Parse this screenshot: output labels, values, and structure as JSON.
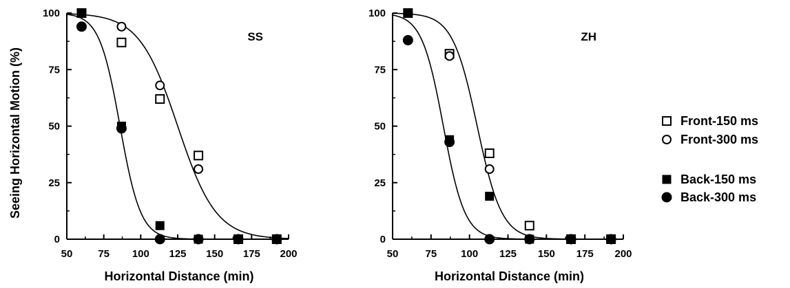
{
  "chart_data": [
    {
      "type": "scatter",
      "panel_label": "SS",
      "xlabel": "Horizontal Distance (min)",
      "ylabel": "Seeing Horizontal Motion (%)",
      "xlim": [
        50,
        200
      ],
      "ylim": [
        0,
        100
      ],
      "xticks": [
        50,
        75,
        100,
        125,
        150,
        175,
        200
      ],
      "yticks": [
        0,
        25,
        50,
        75,
        100
      ],
      "x": [
        60,
        87,
        113,
        139,
        166,
        192
      ],
      "series": [
        {
          "name": "Front-150 ms",
          "marker": "open-square",
          "values": [
            100,
            87,
            62,
            37,
            0,
            0
          ]
        },
        {
          "name": "Front-300 ms",
          "marker": "open-circle",
          "values": [
            100,
            94,
            68,
            31,
            0,
            0
          ]
        },
        {
          "name": "Back-150 ms",
          "marker": "filled-square",
          "values": [
            100,
            50,
            6,
            0,
            0,
            0
          ]
        },
        {
          "name": "Back-300 ms",
          "marker": "filled-circle",
          "values": [
            94,
            49,
            0,
            0,
            0,
            0
          ]
        }
      ],
      "curves": [
        {
          "group": "front",
          "x50": 125,
          "slope": 13
        },
        {
          "group": "back",
          "x50": 86,
          "slope": 7
        }
      ]
    },
    {
      "type": "scatter",
      "panel_label": "ZH",
      "xlabel": "Horizontal Distance (min)",
      "ylabel": "",
      "xlim": [
        50,
        200
      ],
      "ylim": [
        0,
        100
      ],
      "xticks": [
        50,
        75,
        100,
        125,
        150,
        175,
        200
      ],
      "yticks": [
        0,
        25,
        50,
        75,
        100
      ],
      "x": [
        60,
        87,
        113,
        139,
        166,
        192
      ],
      "series": [
        {
          "name": "Front-150 ms",
          "marker": "open-square",
          "values": [
            100,
            82,
            38,
            6,
            0,
            0
          ]
        },
        {
          "name": "Front-300 ms",
          "marker": "open-circle",
          "values": [
            100,
            81,
            31,
            0,
            0,
            0
          ]
        },
        {
          "name": "Back-150 ms",
          "marker": "filled-square",
          "values": [
            100,
            44,
            19,
            0,
            0,
            0
          ]
        },
        {
          "name": "Back-300 ms",
          "marker": "filled-circle",
          "values": [
            88,
            43,
            0,
            0,
            0,
            0
          ]
        }
      ],
      "curves": [
        {
          "group": "front",
          "x50": 105,
          "slope": 8
        },
        {
          "group": "back",
          "x50": 83,
          "slope": 7
        }
      ]
    }
  ],
  "legend": {
    "placement": "right",
    "items": [
      {
        "label": "Front-150 ms",
        "marker": "open-square"
      },
      {
        "label": "Front-300 ms",
        "marker": "open-circle"
      },
      {
        "label": "Back-150 ms",
        "marker": "filled-square"
      },
      {
        "label": "Back-300 ms",
        "marker": "filled-circle"
      }
    ]
  }
}
